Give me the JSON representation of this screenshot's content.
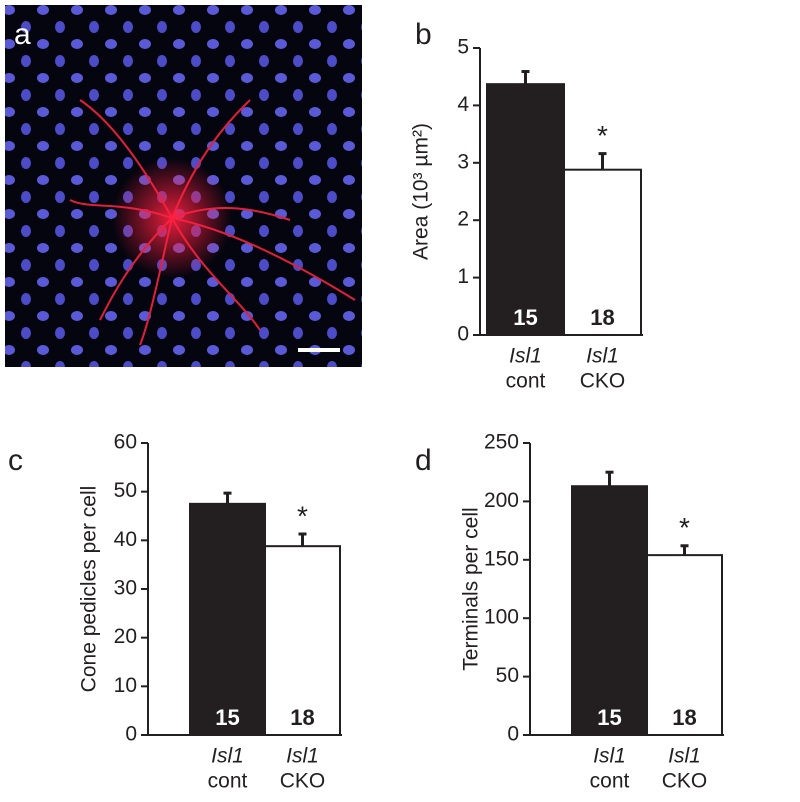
{
  "image_panel": {
    "label": "a"
  },
  "chart_data": [
    {
      "type": "bar",
      "panel": "b",
      "ylabel": "Area (10³ µm²)",
      "gene": "Isl1",
      "categories": [
        "cont",
        "CKO"
      ],
      "values": [
        4.37,
        2.88
      ],
      "errors": [
        0.22,
        0.28
      ],
      "sample_sizes": [
        15,
        18
      ],
      "significance": [
        null,
        "*"
      ],
      "colors": [
        "#231f20",
        "#ffffff"
      ],
      "ylim": [
        0,
        5
      ],
      "yticks": [
        0,
        1,
        2,
        3,
        4,
        5
      ]
    },
    {
      "type": "bar",
      "panel": "c",
      "ylabel": "Cone pedicles per cell",
      "gene": "Isl1",
      "categories": [
        "cont",
        "CKO"
      ],
      "values": [
        47.5,
        38.8
      ],
      "errors": [
        2.2,
        2.5
      ],
      "sample_sizes": [
        15,
        18
      ],
      "significance": [
        null,
        "*"
      ],
      "colors": [
        "#231f20",
        "#ffffff"
      ],
      "ylim": [
        0,
        60
      ],
      "yticks": [
        0,
        10,
        20,
        30,
        40,
        50,
        60
      ]
    },
    {
      "type": "bar",
      "panel": "d",
      "ylabel": "Terminals per cell",
      "gene": "Isl1",
      "categories": [
        "cont",
        "CKO"
      ],
      "values": [
        213,
        154
      ],
      "errors": [
        12,
        8
      ],
      "sample_sizes": [
        15,
        18
      ],
      "significance": [
        null,
        "*"
      ],
      "colors": [
        "#231f20",
        "#ffffff"
      ],
      "ylim": [
        0,
        250
      ],
      "yticks": [
        0,
        50,
        100,
        150,
        200,
        250
      ]
    }
  ]
}
